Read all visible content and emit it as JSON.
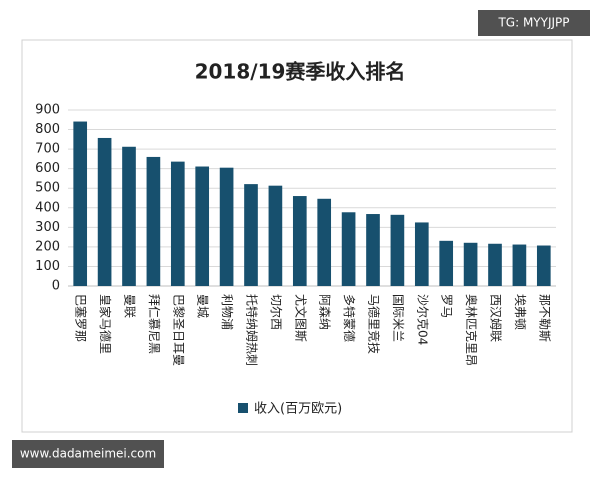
{
  "chart_data": {
    "type": "bar",
    "title": "2018/19赛季收入排名",
    "categories": [
      "巴塞罗那",
      "皇家马德里",
      "曼联",
      "拜仁慕尼黑",
      "巴黎圣日耳曼",
      "曼城",
      "利物浦",
      "托特纳姆热刺",
      "切尔西",
      "尤文图斯",
      "阿森纳",
      "多特蒙德",
      "马德里竞技",
      "国际米兰",
      "沙尔克04",
      "罗马",
      "奥林匹克里昂",
      "西汉姆联",
      "埃弗顿",
      "那不勒斯"
    ],
    "series": [
      {
        "name": "收入(百万欧元)",
        "color": "#17506e",
        "values": [
          841,
          757,
          712,
          660,
          636,
          611,
          605,
          521,
          513,
          460,
          446,
          377,
          368,
          364,
          325,
          231,
          221,
          216,
          212,
          207
        ]
      }
    ],
    "ylim": [
      0,
      900
    ],
    "yticks": [
      0,
      100,
      200,
      300,
      400,
      500,
      600,
      700,
      800,
      900
    ],
    "grid": true,
    "legend": "bottom"
  },
  "watermarks": {
    "top_right": "TG: MYYJJPP",
    "bottom_left": "www.dadameimei.com"
  }
}
